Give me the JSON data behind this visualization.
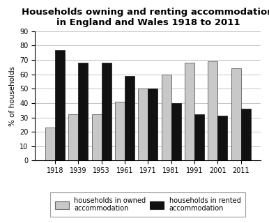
{
  "title": "Households owning and renting accommodation\nin England and Wales 1918 to 2011",
  "years": [
    "1918",
    "1939",
    "1953",
    "1961",
    "1971",
    "1981",
    "1991",
    "2001",
    "2011"
  ],
  "owned": [
    23,
    32,
    32,
    41,
    50,
    60,
    68,
    69,
    64
  ],
  "rented": [
    77,
    68,
    68,
    59,
    50,
    40,
    32,
    31,
    36
  ],
  "owned_color": "#c8c8c8",
  "rented_color": "#111111",
  "ylabel": "% of households",
  "ylim": [
    0,
    90
  ],
  "yticks": [
    0,
    10,
    20,
    30,
    40,
    50,
    60,
    70,
    80,
    90
  ],
  "legend_owned": "households in owned\naccommodation",
  "legend_rented": "households in rented\naccommodation",
  "bar_width": 0.42,
  "title_fontsize": 9.5,
  "axis_fontsize": 7.5,
  "tick_fontsize": 7,
  "legend_fontsize": 7
}
